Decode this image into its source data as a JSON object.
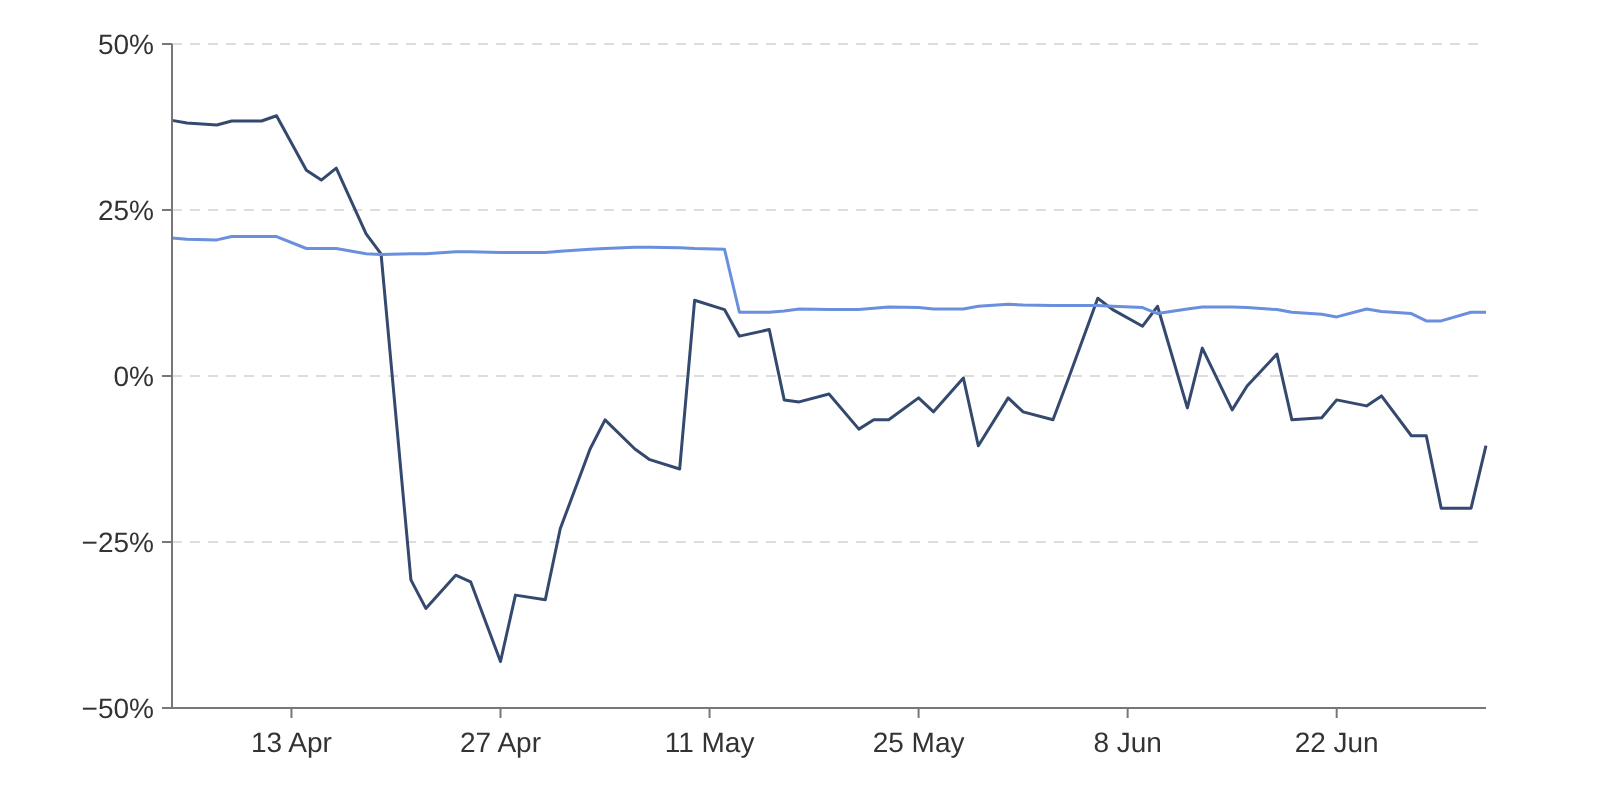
{
  "chart_data": {
    "type": "line",
    "x": [
      "--04-05",
      "--04-06",
      "--04-08",
      "--04-09",
      "--04-11",
      "--04-12",
      "--04-14",
      "--04-15",
      "--04-16",
      "--04-18",
      "--04-19",
      "--04-21",
      "--04-22",
      "--04-24",
      "--04-25",
      "--04-27",
      "--04-28",
      "--04-30",
      "--05-01",
      "--05-03",
      "--05-04",
      "--05-06",
      "--05-07",
      "--05-09",
      "--05-10",
      "--05-12",
      "--05-13",
      "--05-15",
      "--05-16",
      "--05-17",
      "--05-19",
      "--05-21",
      "--05-22",
      "--05-23",
      "--05-25",
      "--05-26",
      "--05-28",
      "--05-29",
      "--05-31",
      "--06-01",
      "--06-03",
      "--06-04",
      "--06-06",
      "--06-07",
      "--06-09",
      "--06-10",
      "--06-12",
      "--06-13",
      "--06-15",
      "--06-16",
      "--06-18",
      "--06-19",
      "--06-21",
      "--06-22",
      "--06-24",
      "--06-25",
      "--06-27",
      "--06-28",
      "--06-29",
      "--07-01",
      "--07-02"
    ],
    "series": [
      {
        "color": "#34496e",
        "values": [
          38.5,
          38.1,
          37.8,
          38.4,
          38.4,
          39.2,
          31,
          29.5,
          31.3,
          21.4,
          18.4,
          -30.7,
          -35,
          -30,
          -31,
          -43,
          -33,
          -33.7,
          -23,
          -11,
          -6.6,
          -11,
          -12.6,
          -14,
          11.4,
          10,
          6,
          7,
          -3.6,
          -3.9,
          -2.7,
          -8,
          -6.6,
          -6.6,
          -3.3,
          -5.4,
          -0.3,
          -10.5,
          -3.3,
          -5.4,
          -6.6,
          -0.6,
          11.7,
          10,
          7.5,
          10.5,
          -4.8,
          4.2,
          -5.1,
          -1.5,
          3.3,
          -6.6,
          -6.3,
          -3.6,
          -4.5,
          -3,
          -9,
          -9,
          -19.9,
          -19.9,
          -10.5
        ]
      },
      {
        "color": "#6a8fdc",
        "values": [
          20.8,
          20.6,
          20.5,
          21,
          21,
          21,
          19.2,
          19.2,
          19.2,
          18.4,
          18.3,
          18.4,
          18.4,
          18.7,
          18.7,
          18.6,
          18.6,
          18.6,
          18.8,
          19.1,
          19.2,
          19.4,
          19.4,
          19.3,
          19.2,
          19.1,
          9.6,
          9.6,
          9.8,
          10.1,
          10,
          10,
          10.2,
          10.4,
          10.3,
          10.1,
          10.1,
          10.5,
          10.8,
          10.7,
          10.6,
          10.6,
          10.6,
          10.5,
          10.3,
          9.4,
          10.1,
          10.4,
          10.4,
          10.3,
          10,
          9.6,
          9.3,
          8.9,
          10.1,
          9.7,
          9.4,
          8.3,
          8.3,
          9.6,
          9.6
        ]
      }
    ],
    "xlim": [
      "--04-05",
      "--07-02"
    ],
    "xticks": [
      {
        "value": "--04-13",
        "label": "13 Apr"
      },
      {
        "value": "--04-27",
        "label": "27 Apr"
      },
      {
        "value": "--05-11",
        "label": "11 May"
      },
      {
        "value": "--05-25",
        "label": "25 May"
      },
      {
        "value": "--06-08",
        "label": "8 Jun"
      },
      {
        "value": "--06-22",
        "label": "22 Jun"
      }
    ],
    "ylim": [
      -50,
      50
    ],
    "yticks": [
      {
        "value": -50,
        "label": "−50%"
      },
      {
        "value": -25,
        "label": "−25%"
      },
      {
        "value": 0,
        "label": "0%"
      },
      {
        "value": 25,
        "label": "25%"
      },
      {
        "value": 50,
        "label": "50%"
      }
    ],
    "grid": "y",
    "marker": "none",
    "line_style": "solid"
  }
}
